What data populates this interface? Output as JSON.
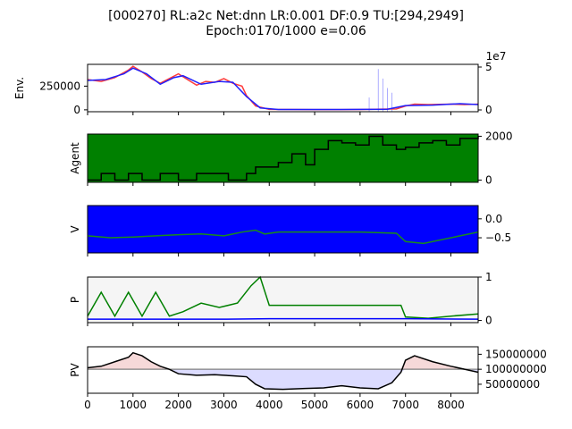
{
  "title_line1": "[000270] RL:a2c Net:dnn LR:0.001 DF:0.9 TU:[294,2949]",
  "title_line2": "Epoch:0170/1000 e=0.06",
  "chart_data": [
    {
      "id": "env",
      "type": "line",
      "ylabel": "Env.",
      "xlim": [
        0,
        8600
      ],
      "left_ticks": [
        "250000",
        "0"
      ],
      "right_ticks": [
        "5",
        "0"
      ],
      "right_offset_text": "1e7",
      "series": [
        {
          "color": "#ff3b3b",
          "points": [
            [
              0,
              320000
            ],
            [
              300,
              300000
            ],
            [
              600,
              340000
            ],
            [
              900,
              420000
            ],
            [
              1000,
              460000
            ],
            [
              1200,
              400000
            ],
            [
              1400,
              330000
            ],
            [
              1600,
              280000
            ],
            [
              1800,
              330000
            ],
            [
              2000,
              380000
            ],
            [
              2200,
              320000
            ],
            [
              2400,
              260000
            ],
            [
              2600,
              300000
            ],
            [
              2800,
              290000
            ],
            [
              3000,
              330000
            ],
            [
              3200,
              280000
            ],
            [
              3400,
              250000
            ],
            [
              3500,
              150000
            ],
            [
              3700,
              40000
            ],
            [
              4000,
              5000
            ],
            [
              5000,
              2000
            ],
            [
              6000,
              3000
            ],
            [
              6800,
              10000
            ],
            [
              7000,
              40000
            ],
            [
              7200,
              60000
            ],
            [
              7500,
              55000
            ],
            [
              8000,
              60000
            ],
            [
              8300,
              55000
            ],
            [
              8600,
              60000
            ]
          ]
        },
        {
          "color": "#2020ff",
          "points": [
            [
              0,
              310000
            ],
            [
              400,
              320000
            ],
            [
              800,
              380000
            ],
            [
              1000,
              440000
            ],
            [
              1300,
              380000
            ],
            [
              1600,
              270000
            ],
            [
              1900,
              340000
            ],
            [
              2100,
              360000
            ],
            [
              2500,
              270000
            ],
            [
              2900,
              300000
            ],
            [
              3200,
              290000
            ],
            [
              3500,
              140000
            ],
            [
              3800,
              20000
            ],
            [
              4200,
              4000
            ],
            [
              5500,
              3000
            ],
            [
              6600,
              6000
            ],
            [
              7000,
              45000
            ],
            [
              7600,
              50000
            ],
            [
              8200,
              65000
            ],
            [
              8600,
              55000
            ]
          ]
        }
      ]
    },
    {
      "id": "agent",
      "type": "step",
      "ylabel": "Agent",
      "xlim": [
        0,
        8600
      ],
      "ylim": [
        -100,
        2100
      ],
      "right_ticks": [
        "2000",
        "0"
      ],
      "right_tick_values": [
        2000,
        0
      ],
      "background": "#008000",
      "series": [
        {
          "color": "#000000",
          "points": [
            [
              0,
              0
            ],
            [
              300,
              300
            ],
            [
              600,
              0
            ],
            [
              900,
              300
            ],
            [
              1200,
              0
            ],
            [
              1600,
              300
            ],
            [
              2000,
              0
            ],
            [
              2400,
              300
            ],
            [
              2800,
              300
            ],
            [
              3100,
              0
            ],
            [
              3500,
              300
            ],
            [
              3700,
              600
            ],
            [
              4200,
              800
            ],
            [
              4500,
              1200
            ],
            [
              4800,
              700
            ],
            [
              5000,
              1400
            ],
            [
              5300,
              1800
            ],
            [
              5600,
              1700
            ],
            [
              5900,
              1600
            ],
            [
              6200,
              2000
            ],
            [
              6500,
              1600
            ],
            [
              6800,
              1400
            ],
            [
              7000,
              1500
            ],
            [
              7300,
              1700
            ],
            [
              7600,
              1800
            ],
            [
              7900,
              1600
            ],
            [
              8200,
              1900
            ],
            [
              8600,
              2000
            ]
          ]
        }
      ]
    },
    {
      "id": "v",
      "type": "line",
      "ylabel": "V",
      "xlim": [
        0,
        8600
      ],
      "ylim": [
        -0.9,
        0.35
      ],
      "right_ticks": [
        "0.0",
        "−0.5"
      ],
      "right_tick_values": [
        0.0,
        -0.5
      ],
      "background": "#0000ff",
      "series": [
        {
          "color": "#1a8c1a",
          "points": [
            [
              0,
              -0.45
            ],
            [
              500,
              -0.5
            ],
            [
              1000,
              -0.48
            ],
            [
              1500,
              -0.45
            ],
            [
              2000,
              -0.42
            ],
            [
              2500,
              -0.4
            ],
            [
              3000,
              -0.45
            ],
            [
              3400,
              -0.35
            ],
            [
              3700,
              -0.3
            ],
            [
              3900,
              -0.4
            ],
            [
              4200,
              -0.35
            ],
            [
              5000,
              -0.35
            ],
            [
              6000,
              -0.35
            ],
            [
              6800,
              -0.38
            ],
            [
              7000,
              -0.6
            ],
            [
              7400,
              -0.65
            ],
            [
              7800,
              -0.55
            ],
            [
              8200,
              -0.45
            ],
            [
              8600,
              -0.35
            ]
          ]
        }
      ]
    },
    {
      "id": "p",
      "type": "line",
      "ylabel": "P",
      "xlim": [
        0,
        8600
      ],
      "ylim": [
        -0.05,
        1.0
      ],
      "right_ticks": [
        "1",
        "0"
      ],
      "right_tick_values": [
        1,
        0
      ],
      "background": "#f5f5f5",
      "series": [
        {
          "color": "#008000",
          "points": [
            [
              0,
              0.1
            ],
            [
              300,
              0.65
            ],
            [
              600,
              0.1
            ],
            [
              900,
              0.65
            ],
            [
              1200,
              0.1
            ],
            [
              1500,
              0.65
            ],
            [
              1800,
              0.1
            ],
            [
              2100,
              0.2
            ],
            [
              2500,
              0.4
            ],
            [
              2900,
              0.3
            ],
            [
              3300,
              0.4
            ],
            [
              3600,
              0.8
            ],
            [
              3800,
              1.0
            ],
            [
              4000,
              0.35
            ],
            [
              4400,
              0.35
            ],
            [
              5500,
              0.35
            ],
            [
              6500,
              0.35
            ],
            [
              6900,
              0.35
            ],
            [
              7000,
              0.08
            ],
            [
              7500,
              0.05
            ],
            [
              8000,
              0.1
            ],
            [
              8600,
              0.15
            ]
          ]
        },
        {
          "color": "#0000ff",
          "points": [
            [
              0,
              0.03
            ],
            [
              3000,
              0.03
            ],
            [
              4000,
              0.04
            ],
            [
              7000,
              0.04
            ],
            [
              8600,
              0.03
            ]
          ]
        }
      ]
    },
    {
      "id": "pv",
      "type": "area",
      "ylabel": "PV",
      "xlim": [
        0,
        8600
      ],
      "ylim": [
        20000000,
        175000000
      ],
      "right_ticks": [
        "150000000",
        "100000000",
        "50000000"
      ],
      "right_tick_values": [
        150000000,
        100000000,
        50000000
      ],
      "baseline": 100000000,
      "x_ticks": [
        "0",
        "1000",
        "2000",
        "3000",
        "4000",
        "5000",
        "6000",
        "7000",
        "8000"
      ],
      "x_tick_values": [
        0,
        1000,
        2000,
        3000,
        4000,
        5000,
        6000,
        7000,
        8000
      ],
      "series": [
        {
          "color": "#000000",
          "points": [
            [
              0,
              105000000
            ],
            [
              300,
              110000000
            ],
            [
              600,
              125000000
            ],
            [
              900,
              140000000
            ],
            [
              1000,
              155000000
            ],
            [
              1200,
              145000000
            ],
            [
              1400,
              125000000
            ],
            [
              1600,
              110000000
            ],
            [
              1800,
              100000000
            ],
            [
              2000,
              85000000
            ],
            [
              2400,
              80000000
            ],
            [
              2800,
              82000000
            ],
            [
              3200,
              78000000
            ],
            [
              3500,
              75000000
            ],
            [
              3700,
              50000000
            ],
            [
              3900,
              35000000
            ],
            [
              4300,
              33000000
            ],
            [
              4800,
              36000000
            ],
            [
              5200,
              38000000
            ],
            [
              5600,
              45000000
            ],
            [
              6000,
              38000000
            ],
            [
              6400,
              35000000
            ],
            [
              6700,
              55000000
            ],
            [
              6900,
              90000000
            ],
            [
              7000,
              130000000
            ],
            [
              7200,
              145000000
            ],
            [
              7600,
              125000000
            ],
            [
              8000,
              110000000
            ],
            [
              8300,
              100000000
            ],
            [
              8600,
              90000000
            ]
          ]
        }
      ]
    }
  ]
}
